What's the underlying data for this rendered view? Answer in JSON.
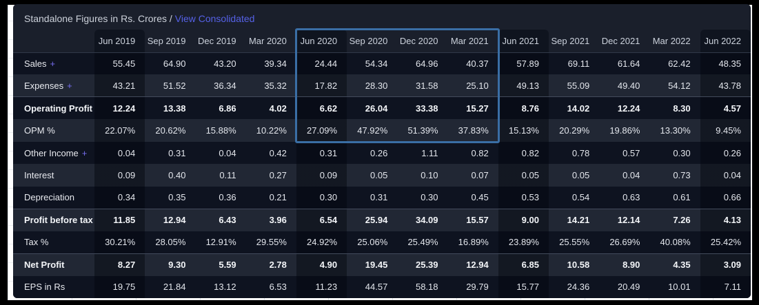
{
  "title": {
    "text": "Standalone Figures in Rs. Crores /",
    "link": "View Consolidated"
  },
  "table": {
    "columns": [
      "Jun 2019",
      "Sep 2019",
      "Dec 2019",
      "Mar 2020",
      "Jun 2020",
      "Sep 2020",
      "Dec 2020",
      "Mar 2021",
      "Jun 2021",
      "Sep 2021",
      "Dec 2021",
      "Mar 2022",
      "Jun 2022"
    ],
    "highlighted_column_indexes": [
      0,
      4,
      8,
      12
    ],
    "selection_box": {
      "col_start": 4,
      "col_end": 7,
      "row_start": 0,
      "row_end": 3
    },
    "rows": [
      {
        "label": "Sales",
        "expandable": true,
        "bold": false,
        "values": [
          "55.45",
          "64.90",
          "43.20",
          "39.34",
          "24.44",
          "54.34",
          "64.96",
          "40.37",
          "57.89",
          "69.11",
          "61.64",
          "62.42",
          "48.35"
        ]
      },
      {
        "label": "Expenses",
        "expandable": true,
        "bold": false,
        "values": [
          "43.21",
          "51.52",
          "36.34",
          "35.32",
          "17.82",
          "28.30",
          "31.58",
          "25.10",
          "49.13",
          "55.09",
          "49.40",
          "54.12",
          "43.78"
        ]
      },
      {
        "label": "Operating Profit",
        "expandable": false,
        "bold": true,
        "values": [
          "12.24",
          "13.38",
          "6.86",
          "4.02",
          "6.62",
          "26.04",
          "33.38",
          "15.27",
          "8.76",
          "14.02",
          "12.24",
          "8.30",
          "4.57"
        ]
      },
      {
        "label": "OPM %",
        "expandable": false,
        "bold": false,
        "values": [
          "22.07%",
          "20.62%",
          "15.88%",
          "10.22%",
          "27.09%",
          "47.92%",
          "51.39%",
          "37.83%",
          "15.13%",
          "20.29%",
          "19.86%",
          "13.30%",
          "9.45%"
        ]
      },
      {
        "label": "Other Income",
        "expandable": true,
        "bold": false,
        "values": [
          "0.04",
          "0.31",
          "0.04",
          "0.42",
          "0.31",
          "0.26",
          "1.11",
          "0.82",
          "0.82",
          "0.78",
          "0.57",
          "0.30",
          "0.26"
        ]
      },
      {
        "label": "Interest",
        "expandable": false,
        "bold": false,
        "values": [
          "0.09",
          "0.40",
          "0.11",
          "0.27",
          "0.09",
          "0.05",
          "0.10",
          "0.07",
          "0.05",
          "0.05",
          "0.04",
          "0.73",
          "0.04"
        ]
      },
      {
        "label": "Depreciation",
        "expandable": false,
        "bold": false,
        "values": [
          "0.34",
          "0.35",
          "0.36",
          "0.21",
          "0.30",
          "0.31",
          "0.30",
          "0.45",
          "0.53",
          "0.54",
          "0.63",
          "0.61",
          "0.66"
        ]
      },
      {
        "label": "Profit before tax",
        "expandable": false,
        "bold": true,
        "values": [
          "11.85",
          "12.94",
          "6.43",
          "3.96",
          "6.54",
          "25.94",
          "34.09",
          "15.57",
          "9.00",
          "14.21",
          "12.14",
          "7.26",
          "4.13"
        ]
      },
      {
        "label": "Tax %",
        "expandable": false,
        "bold": false,
        "values": [
          "30.21%",
          "28.05%",
          "12.91%",
          "29.55%",
          "24.92%",
          "25.06%",
          "25.49%",
          "16.89%",
          "23.89%",
          "25.55%",
          "26.69%",
          "40.08%",
          "25.42%"
        ]
      },
      {
        "label": "Net Profit",
        "expandable": false,
        "bold": true,
        "values": [
          "8.27",
          "9.30",
          "5.59",
          "2.78",
          "4.90",
          "19.45",
          "25.39",
          "12.94",
          "6.85",
          "10.58",
          "8.90",
          "4.35",
          "3.09"
        ]
      },
      {
        "label": "EPS in Rs",
        "expandable": false,
        "bold": false,
        "values": [
          "19.75",
          "21.84",
          "13.12",
          "6.53",
          "11.23",
          "44.57",
          "58.18",
          "29.79",
          "15.77",
          "24.36",
          "20.49",
          "10.01",
          "7.11"
        ]
      }
    ]
  },
  "colors": {
    "link": "#5561e6",
    "plus": "#766ef0",
    "selection_border": "#3a6ea5",
    "stripe_dark": "#0e1320",
    "stripe_light": "#212734",
    "card_bg": "#1a1f2b"
  }
}
